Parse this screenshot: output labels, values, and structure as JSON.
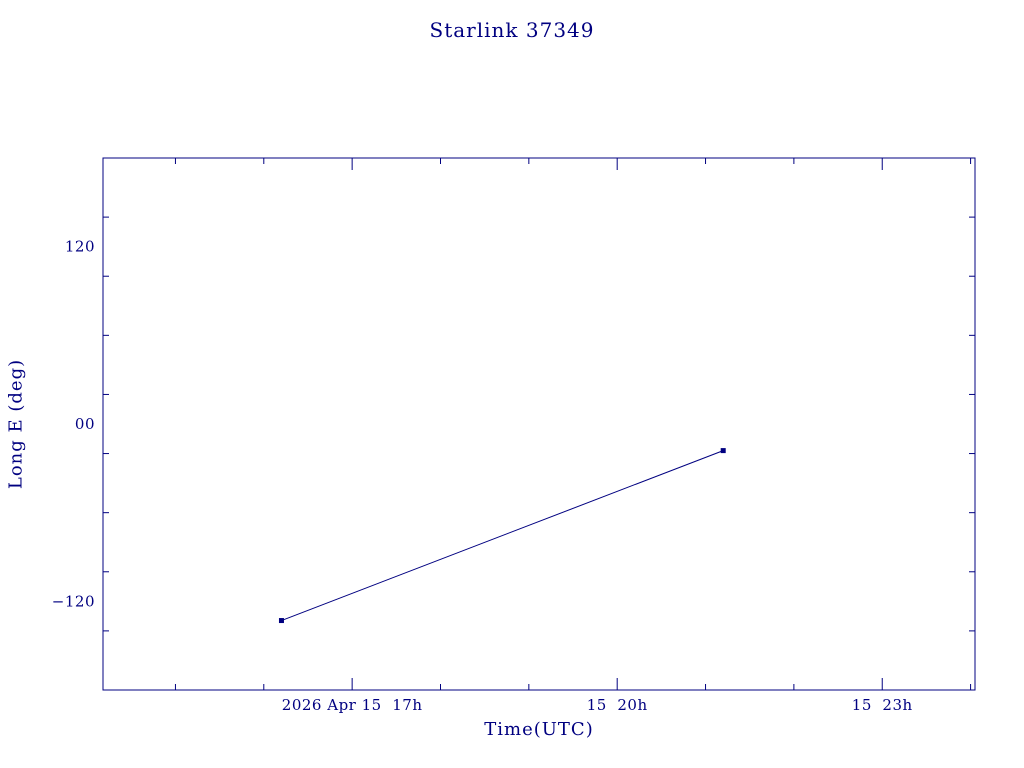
{
  "page": {
    "background_color": "#ffffff",
    "accent_color": "#000080"
  },
  "chart_data": {
    "type": "line",
    "title": "Starlink 37349",
    "xlabel": "Time(UTC)",
    "ylabel": "Long E (deg)",
    "grid": false,
    "legend": "none",
    "xlim_hours": [
      14.18,
      24.05
    ],
    "ylim": [
      -180,
      180
    ],
    "y_ticks": [
      {
        "value": 120,
        "label": "120"
      },
      {
        "value": 0,
        "label": "00"
      },
      {
        "value": -120,
        "label": "−120"
      }
    ],
    "y_minor_step": 40,
    "x_ticks": [
      {
        "hour": 17,
        "label": "2026 Apr 15  17h"
      },
      {
        "hour": 20,
        "label": "15  20h"
      },
      {
        "hour": 23,
        "label": "15  23h"
      }
    ],
    "x_minor_step_hours": 1,
    "series": [
      {
        "name": "Long E",
        "color": "#000080",
        "marker": "square",
        "points": [
          {
            "hour": 16.2,
            "value": -133
          },
          {
            "hour": 21.2,
            "value": -18
          }
        ]
      }
    ]
  }
}
